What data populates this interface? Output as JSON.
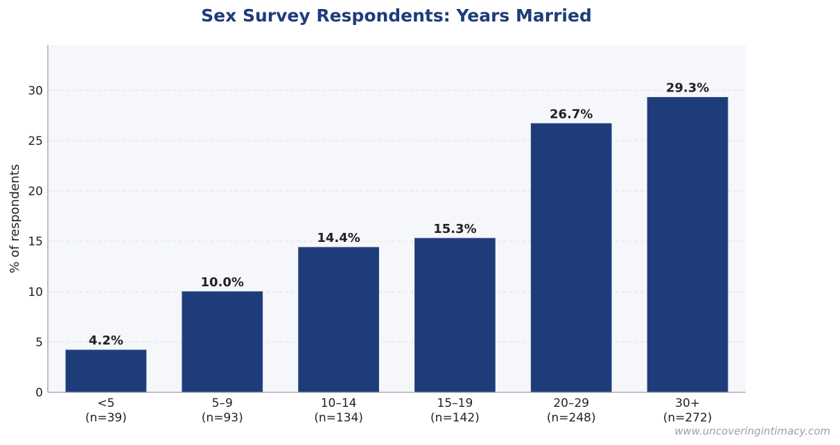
{
  "chart_data": {
    "type": "bar",
    "title": "Sex Survey Respondents: Years Married",
    "xlabel": "",
    "ylabel": "% of respondents",
    "categories": [
      "<5",
      "5–9",
      "10–14",
      "15–19",
      "20–29",
      "30+"
    ],
    "category_counts": [
      "(n=39)",
      "(n=93)",
      "(n=134)",
      "(n=142)",
      "(n=248)",
      "(n=272)"
    ],
    "values": [
      4.2,
      10.0,
      14.4,
      15.3,
      26.7,
      29.3
    ],
    "data_labels": [
      "4.2%",
      "10.0%",
      "14.4%",
      "15.3%",
      "26.7%",
      "29.3%"
    ],
    "ylim": [
      0,
      34.5
    ],
    "yticks": [
      0,
      5,
      10,
      15,
      20,
      25,
      30
    ],
    "grid": true,
    "legend": "none"
  },
  "colors": {
    "bar": "#1f3c7a",
    "title": "#1f3c7a",
    "plot_background": "#f6f7fb",
    "grid": "#dde1ea",
    "axis": "#9aa0a8"
  },
  "watermark": "www.uncoveringintimacy.com"
}
